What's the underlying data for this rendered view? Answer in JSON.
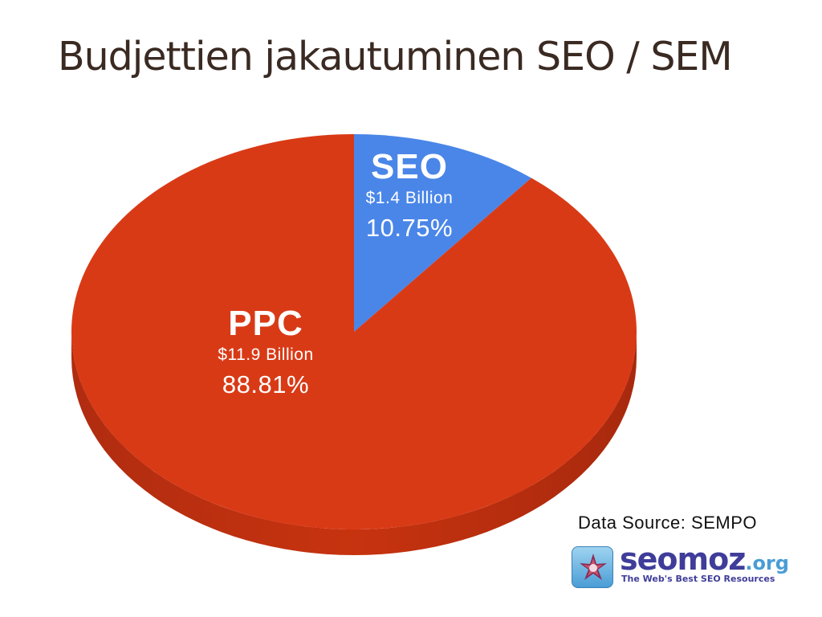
{
  "slide": {
    "title": "Budjettien jakautuminen SEO / SEM",
    "source": "Data Source: SEMPO"
  },
  "chart_data": {
    "type": "pie",
    "title": "",
    "slices": [
      {
        "label": "SEO",
        "amount": "$1.4 Billion",
        "percent_label": "10.75%",
        "value": 10.75,
        "color": "#4a86e8"
      },
      {
        "label": "PPC",
        "amount": "$11.9 Billion",
        "percent_label": "88.81%",
        "value": 88.81,
        "color": "#d93a16"
      }
    ]
  },
  "logo": {
    "name": "seomoz",
    "tld": ".org",
    "tagline": "The Web's Best SEO Resources",
    "icon": "compass-star-icon",
    "brand_color": "#3f3d99",
    "accent_color": "#4a9dd6"
  }
}
